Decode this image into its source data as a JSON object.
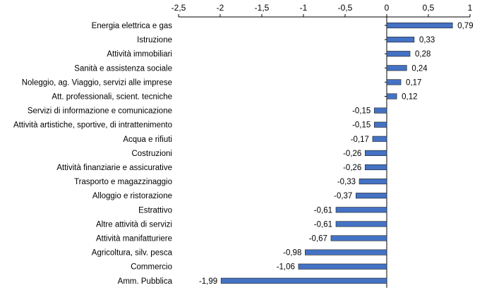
{
  "chart_data": {
    "type": "bar",
    "orientation": "horizontal",
    "categories": [
      "Energia elettrica e gas",
      "Istruzione",
      "Attività immobiliari",
      "Sanità e assistenza sociale",
      "Noleggio, ag. Viaggio, servizi alle imprese",
      "Att. professionali, scient.  tecniche",
      "Servizi di informazione e comunicazione",
      "Attività artistiche, sportive, di intrattenimento",
      "Acqua e rifiuti",
      "Costruzioni",
      "Attività finanziarie e assicurative",
      "Trasporto e magazzinaggio",
      "Alloggio e ristorazione",
      "Estrattivo",
      "Altre attività di servizi",
      "Attività manifatturiere",
      "Agricoltura, silv. pesca",
      "Commercio",
      "Amm. Pubblica"
    ],
    "values": [
      0.79,
      0.33,
      0.28,
      0.24,
      0.17,
      0.12,
      -0.15,
      -0.15,
      -0.17,
      -0.26,
      -0.26,
      -0.33,
      -0.37,
      -0.61,
      -0.61,
      -0.67,
      -0.98,
      -1.06,
      -1.99
    ],
    "value_labels": [
      "0,79",
      "0,33",
      "0,28",
      "0,24",
      "0,17",
      "0,12",
      "-0,15",
      "-0,15",
      "-0,17",
      "-0,26",
      "-0,26",
      "-0,33",
      "-0,37",
      "-0,61",
      "-0,61",
      "-0,67",
      "-0,98",
      "-1,06",
      "-1,99"
    ],
    "xlim": [
      -2.5,
      1
    ],
    "xticks": [
      -2.5,
      -2,
      -1.5,
      -1,
      -0.5,
      0,
      0.5,
      1
    ],
    "xtick_labels": [
      "-2,5",
      "-2",
      "-1,5",
      "-1",
      "-0,5",
      "0",
      "0,5",
      "1"
    ],
    "x_axis_position": "top",
    "grid": false,
    "legend": "none",
    "colors": {
      "bar_fill": "#4472C4",
      "bar_stroke": "#1F1F1F",
      "axis": "#000000"
    }
  }
}
